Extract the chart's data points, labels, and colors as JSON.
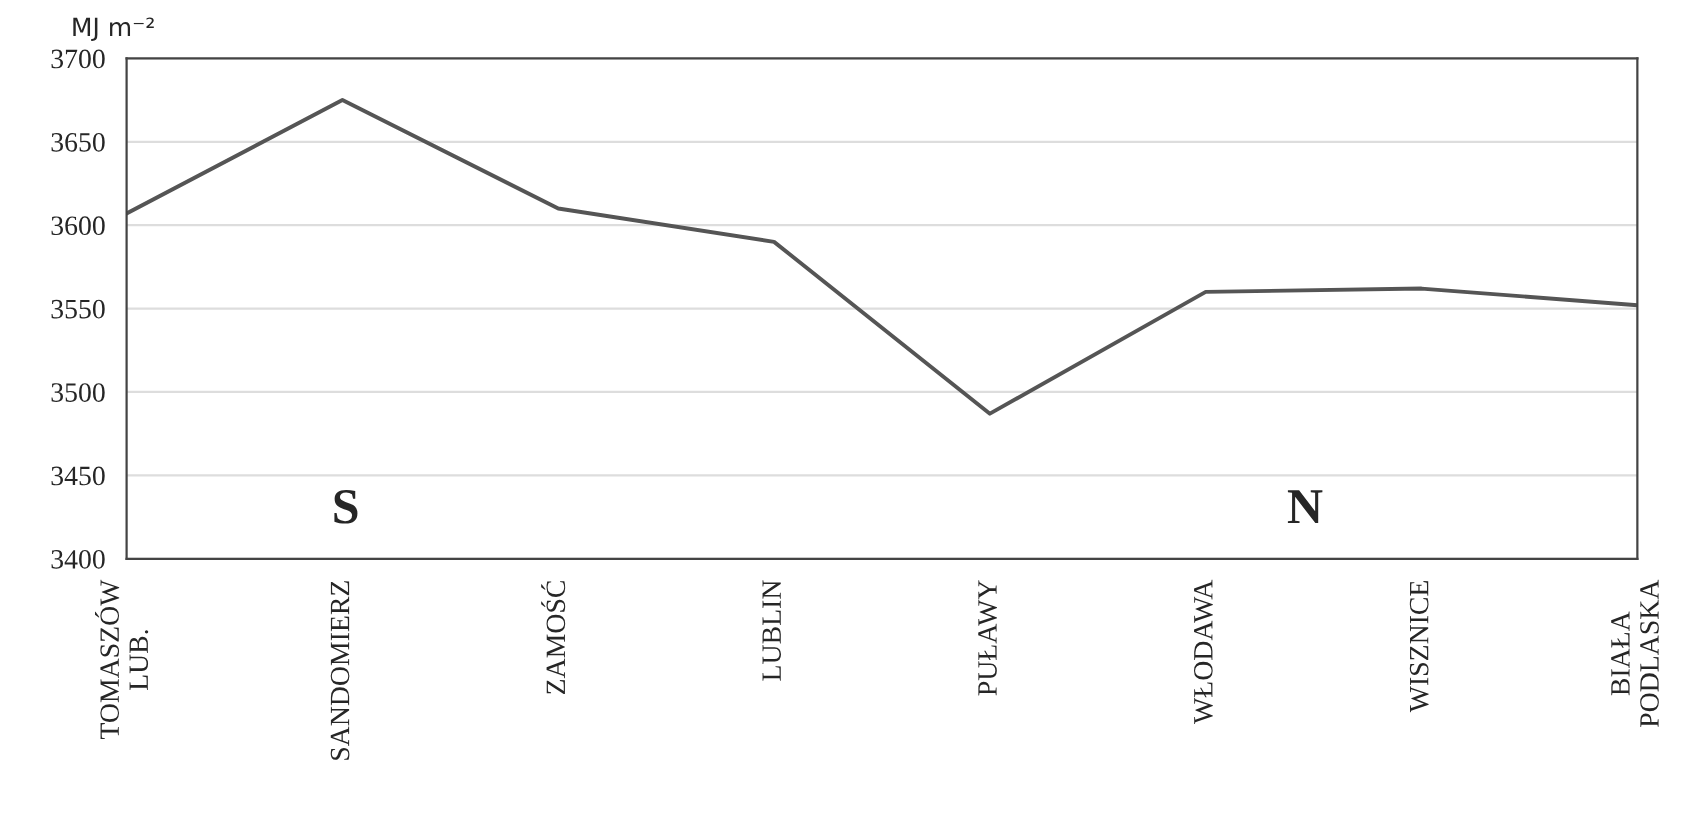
{
  "chart_data": {
    "type": "line",
    "ylabel": "MJ m⁻²",
    "categories": [
      "TOMASZÓW\nLUB.",
      "SANDOMIERZ",
      "ZAMOŚĆ",
      "LUBLIN",
      "PUŁAWY",
      "WŁODAWA",
      "WISZNICE",
      "BIAŁA\nPODLASKA"
    ],
    "series": [
      {
        "color": "#555555",
        "values": [
          3607,
          3675,
          3610,
          3590,
          3487,
          3560,
          3562,
          3552
        ]
      }
    ],
    "ylim": [
      3400,
      3700
    ],
    "yticks": [
      3400,
      3450,
      3500,
      3550,
      3600,
      3650,
      3700
    ],
    "grid": "y",
    "marker": "none",
    "line_style": "solid",
    "annotations": [
      "S",
      "N"
    ]
  }
}
